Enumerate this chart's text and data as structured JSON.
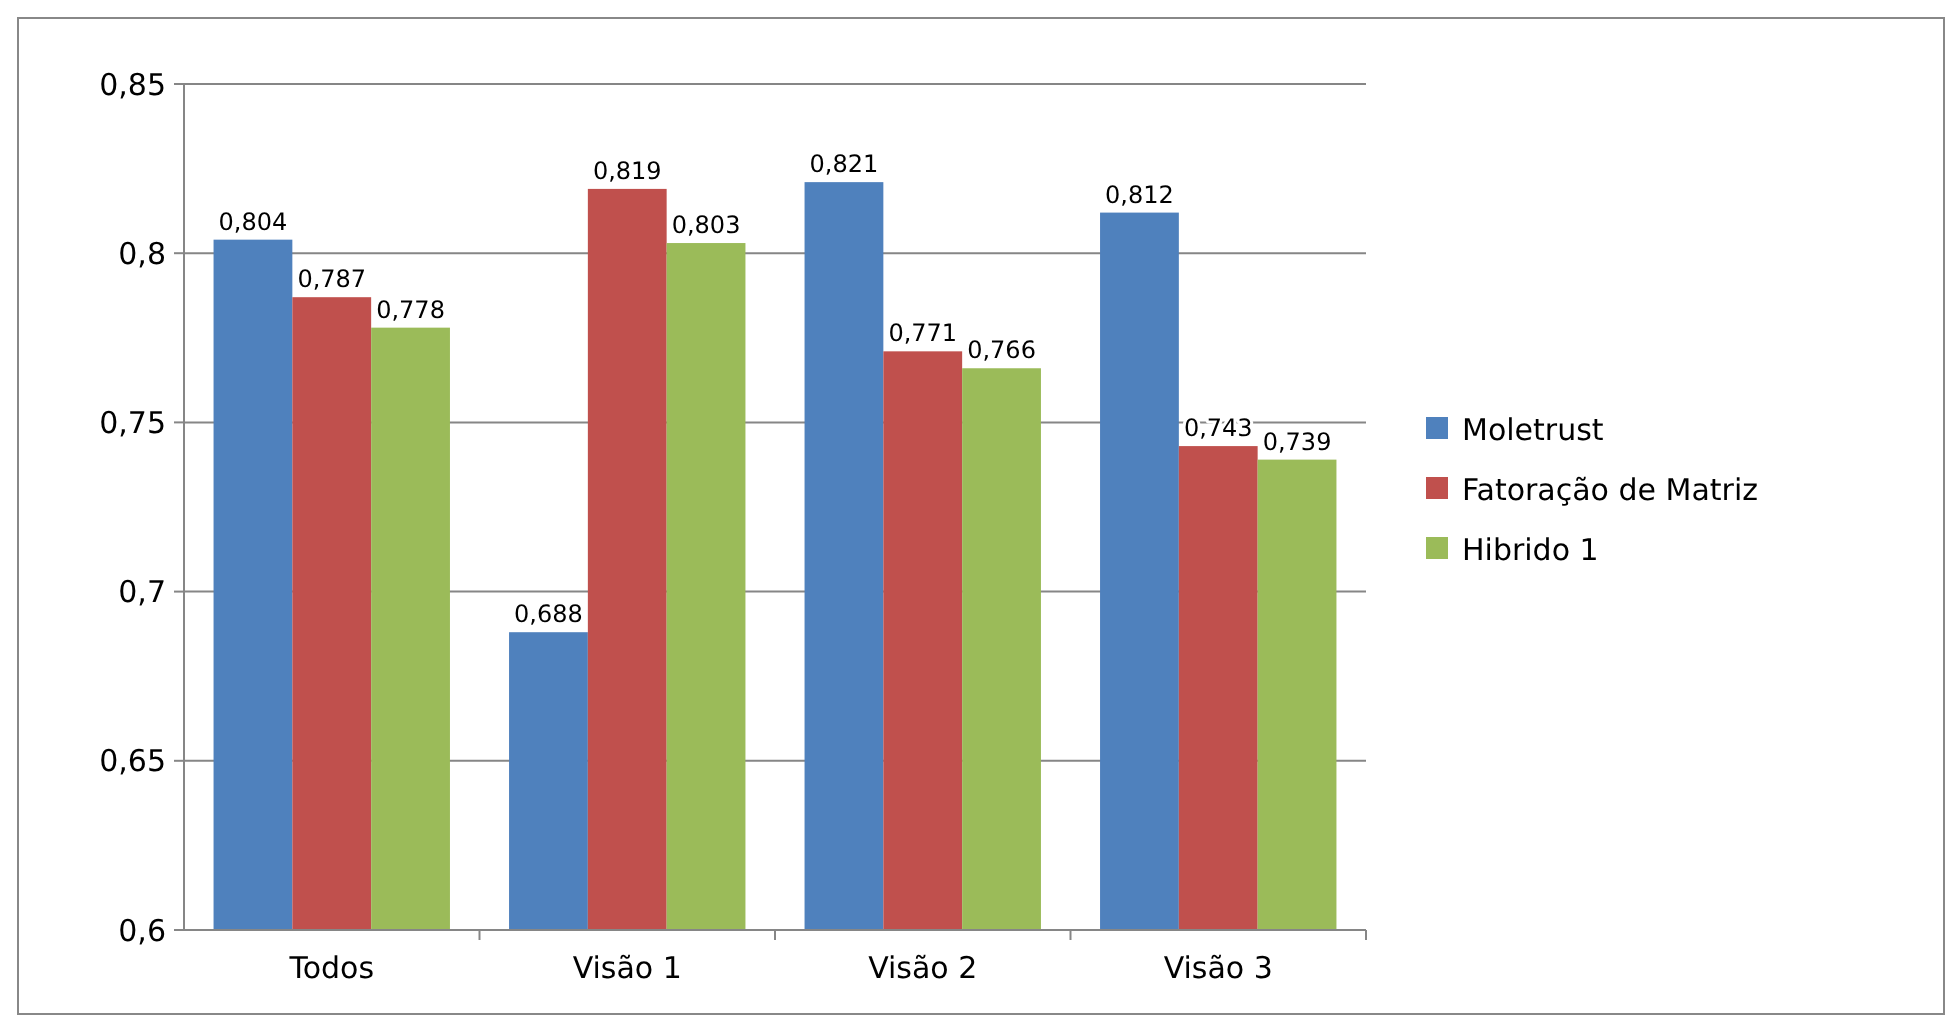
{
  "chart_data": {
    "type": "bar",
    "categories": [
      "Todos",
      "Visão 1",
      "Visão 2",
      "Visão 3"
    ],
    "series": [
      {
        "name": "Moletrust",
        "color": "#4f81bd",
        "values": [
          0.804,
          0.688,
          0.821,
          0.812
        ],
        "value_labels": [
          "0,804",
          "0,688",
          "0,821",
          "0,812"
        ]
      },
      {
        "name": "Fatoração de Matriz",
        "color": "#c0504d",
        "values": [
          0.787,
          0.819,
          0.771,
          0.743
        ],
        "value_labels": [
          "0,787",
          "0,819",
          "0,771",
          "0,743"
        ]
      },
      {
        "name": "Hibrido 1",
        "color": "#9bbb59",
        "values": [
          0.778,
          0.803,
          0.766,
          0.739
        ],
        "value_labels": [
          "0,778",
          "0,803",
          "0,766",
          "0,739"
        ]
      }
    ],
    "ylim": [
      0.6,
      0.85
    ],
    "yticks": [
      {
        "value": 0.6,
        "label": "0,6"
      },
      {
        "value": 0.65,
        "label": "0,65"
      },
      {
        "value": 0.7,
        "label": "0,7"
      },
      {
        "value": 0.75,
        "label": "0,75"
      },
      {
        "value": 0.8,
        "label": "0,8"
      },
      {
        "value": 0.85,
        "label": "0,85"
      }
    ],
    "grid": "y",
    "legend": "right"
  }
}
